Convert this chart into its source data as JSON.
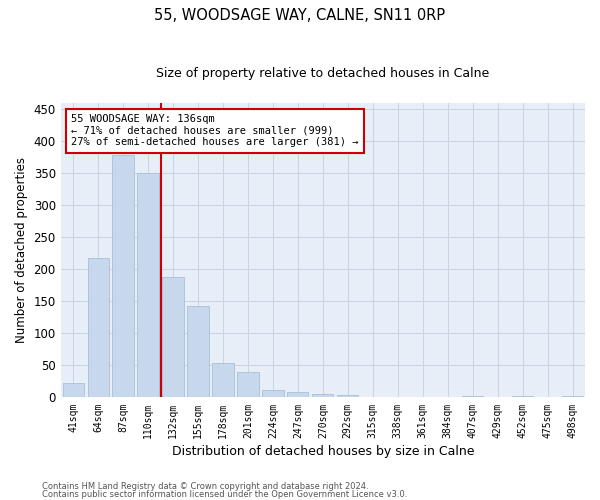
{
  "title1": "55, WOODSAGE WAY, CALNE, SN11 0RP",
  "title2": "Size of property relative to detached houses in Calne",
  "xlabel": "Distribution of detached houses by size in Calne",
  "ylabel": "Number of detached properties",
  "bar_labels": [
    "41sqm",
    "64sqm",
    "87sqm",
    "110sqm",
    "132sqm",
    "155sqm",
    "178sqm",
    "201sqm",
    "224sqm",
    "247sqm",
    "270sqm",
    "292sqm",
    "315sqm",
    "338sqm",
    "361sqm",
    "384sqm",
    "407sqm",
    "429sqm",
    "452sqm",
    "475sqm",
    "498sqm"
  ],
  "bar_values": [
    22,
    218,
    378,
    350,
    188,
    142,
    53,
    39,
    11,
    8,
    6,
    4,
    1,
    0,
    0,
    0,
    3,
    0,
    3,
    0,
    3
  ],
  "bar_color": "#c8d8ec",
  "bar_edge_color": "#a8c0d8",
  "vline_color": "#cc0000",
  "vline_x": 3.5,
  "annotation_text": "55 WOODSAGE WAY: 136sqm\n← 71% of detached houses are smaller (999)\n27% of semi-detached houses are larger (381) →",
  "annotation_box_facecolor": "#ffffff",
  "annotation_box_edgecolor": "#cc0000",
  "grid_color": "#c8d4e4",
  "background_color": "#e8eef8",
  "ylim": [
    0,
    460
  ],
  "yticks": [
    0,
    50,
    100,
    150,
    200,
    250,
    300,
    350,
    400,
    450
  ],
  "footer1": "Contains HM Land Registry data © Crown copyright and database right 2024.",
  "footer2": "Contains public sector information licensed under the Open Government Licence v3.0."
}
